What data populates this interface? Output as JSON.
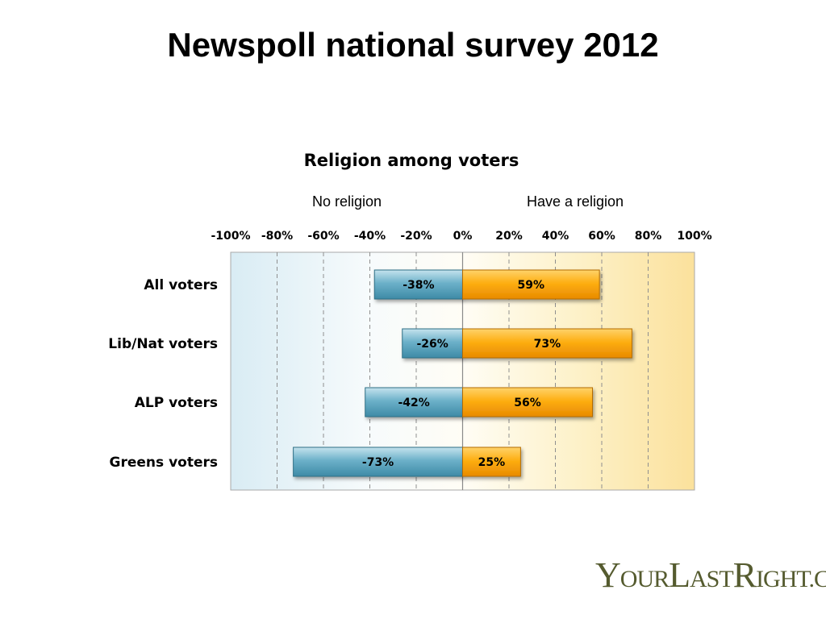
{
  "page": {
    "title": "Newspoll national survey 2012",
    "logo": {
      "text": "YOURLASTRIGHT.COM",
      "parts": [
        {
          "t": "Y",
          "size": "big"
        },
        {
          "t": "OUR",
          "size": "small"
        },
        {
          "t": "L",
          "size": "big"
        },
        {
          "t": "AST",
          "size": "small"
        },
        {
          "t": "R",
          "size": "big"
        },
        {
          "t": "IGHT.COM",
          "size": "small"
        }
      ],
      "color": "#555b2f"
    }
  },
  "chart_data": {
    "type": "bar",
    "orientation": "horizontal",
    "stacked": "diverging",
    "title": "Religion among voters",
    "side_labels": {
      "left": "No religion",
      "right": "Have a religion"
    },
    "x_ticks": [
      "-100%",
      "-80%",
      "-60%",
      "-40%",
      "-20%",
      "0%",
      "20%",
      "40%",
      "60%",
      "80%",
      "100%"
    ],
    "xlim": [
      -100,
      100
    ],
    "grid": "vertical dashed",
    "categories": [
      "All voters",
      "Lib/Nat voters",
      "ALP voters",
      "Greens voters"
    ],
    "series": [
      {
        "name": "No religion",
        "values": [
          -38,
          -26,
          -42,
          -73
        ],
        "labels": [
          "-38%",
          "-26%",
          "-42%",
          "-73%"
        ],
        "color": "#4f9bb4"
      },
      {
        "name": "Have a religion",
        "values": [
          59,
          73,
          56,
          25
        ],
        "labels": [
          "59%",
          "73%",
          "56%",
          "25%"
        ],
        "color": "#f5a100"
      }
    ]
  }
}
